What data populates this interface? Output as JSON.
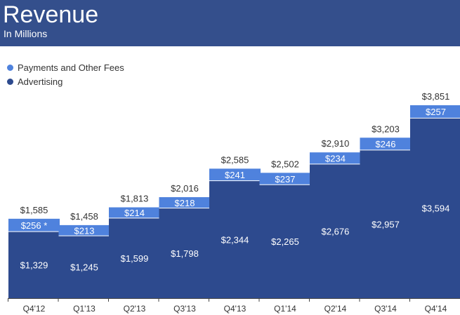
{
  "header": {
    "title": "Revenue",
    "subtitle": "In Millions"
  },
  "colors": {
    "header_bg": "#344f8c",
    "advertising": "#2d4a8e",
    "payments": "#4f82dd"
  },
  "chart_data": {
    "type": "bar",
    "stacked": true,
    "title": "Revenue",
    "subtitle": "In Millions",
    "categories": [
      "Q4'12",
      "Q1'13",
      "Q2'13",
      "Q3'13",
      "Q4'13",
      "Q1'14",
      "Q2'14",
      "Q3'14",
      "Q4'14"
    ],
    "series": [
      {
        "name": "Advertising",
        "values": [
          1329,
          1245,
          1599,
          1798,
          2344,
          2265,
          2676,
          2957,
          3594
        ],
        "labels": [
          "$1,329",
          "$1,245",
          "$1,599",
          "$1,798",
          "$2,344",
          "$2,265",
          "$2,676",
          "$2,957",
          "$3,594"
        ]
      },
      {
        "name": "Payments and Other Fees",
        "values": [
          256,
          213,
          214,
          218,
          241,
          237,
          234,
          246,
          257
        ],
        "labels": [
          "$256 *",
          "$213",
          "$214",
          "$218",
          "$241",
          "$237",
          "$234",
          "$246",
          "$257"
        ]
      }
    ],
    "totals": [
      1585,
      1458,
      1813,
      2016,
      2585,
      2502,
      2910,
      3203,
      3851
    ],
    "total_labels": [
      "$1,585",
      "$1,458",
      "$1,813",
      "$2,016",
      "$2,585",
      "$2,502",
      "$2,910",
      "$3,203",
      "$3,851"
    ],
    "legend": [
      "Payments and Other Fees",
      "Advertising"
    ],
    "legend_position": "top-left",
    "ylim": [
      0,
      3851
    ],
    "grid": false
  }
}
